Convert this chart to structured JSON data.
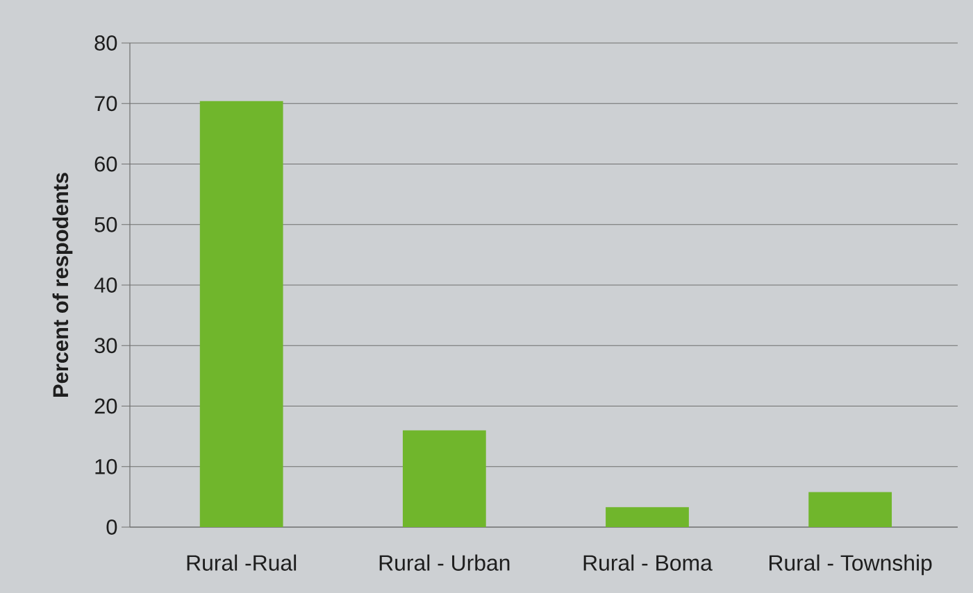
{
  "chart_data": {
    "type": "bar",
    "categories": [
      "Rural -Rual",
      "Rural - Urban",
      "Rural - Boma",
      "Rural - Township"
    ],
    "values": [
      70.4,
      16,
      3.3,
      5.8
    ],
    "color": "#70b62c",
    "ylabel": "Percent of respodents",
    "ylim": [
      0,
      80
    ],
    "yticks": [
      0,
      10,
      20,
      30,
      40,
      50,
      60,
      70,
      80
    ],
    "grid": "y"
  }
}
